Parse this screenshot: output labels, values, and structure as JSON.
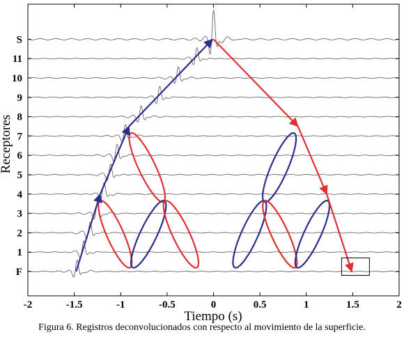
{
  "chart_data": {
    "type": "line",
    "xlabel": "Tiempo (s)",
    "ylabel": "Receptores",
    "xlim": [
      -2,
      2
    ],
    "xticks": [
      "-2",
      "-1.5",
      "-1",
      "-0.5",
      "0",
      "0.5",
      "1",
      "1.5",
      "2"
    ],
    "yticks": [
      "F",
      "1",
      "2",
      "3",
      "4",
      "5",
      "6",
      "7",
      "8",
      "9",
      "10",
      "11",
      "S"
    ],
    "grid": false,
    "trace_color": "#555555",
    "traces": [
      {
        "label": "F",
        "pulses": [
          {
            "t": -1.47,
            "a": 1
          }
        ]
      },
      {
        "label": "1",
        "pulses": [
          {
            "t": -1.4,
            "a": 1
          }
        ]
      },
      {
        "label": "2",
        "pulses": [
          {
            "t": -1.33,
            "a": 1
          }
        ]
      },
      {
        "label": "3",
        "pulses": [
          {
            "t": -1.25,
            "a": 1
          }
        ]
      },
      {
        "label": "4",
        "pulses": [
          {
            "t": -1.18,
            "a": 1
          }
        ]
      },
      {
        "label": "5",
        "pulses": [
          {
            "t": -1.11,
            "a": 1
          }
        ]
      },
      {
        "label": "6",
        "pulses": [
          {
            "t": -1.04,
            "a": 1
          }
        ]
      },
      {
        "label": "7",
        "pulses": [
          {
            "t": -0.95,
            "a": 1
          }
        ]
      },
      {
        "label": "8",
        "pulses": [
          {
            "t": -0.78,
            "a": 1
          }
        ]
      },
      {
        "label": "9",
        "pulses": [
          {
            "t": -0.58,
            "a": 1
          }
        ]
      },
      {
        "label": "10",
        "pulses": [
          {
            "t": -0.38,
            "a": 1
          }
        ]
      },
      {
        "label": "11",
        "pulses": [
          {
            "t": -0.18,
            "a": 1
          }
        ]
      },
      {
        "label": "S",
        "pulses": [
          {
            "t": 0.0,
            "a": 1.3
          }
        ]
      }
    ],
    "arrows": [
      {
        "color": "#2b2d8f",
        "points": [
          [
            -1.48,
            "F"
          ],
          [
            -1.22,
            "4"
          ]
        ]
      },
      {
        "color": "#2b2d8f",
        "points": [
          [
            -1.22,
            "4"
          ],
          [
            -0.91,
            "7.5"
          ]
        ]
      },
      {
        "color": "#2b2d8f",
        "points": [
          [
            -0.91,
            "7.5"
          ],
          [
            -0.01,
            "S"
          ]
        ]
      },
      {
        "color": "#e03030",
        "points": [
          [
            0.0,
            "S"
          ],
          [
            0.91,
            "7.5"
          ]
        ]
      },
      {
        "color": "#e03030",
        "points": [
          [
            0.91,
            "7.5"
          ],
          [
            1.22,
            "4"
          ]
        ]
      },
      {
        "color": "#e03030",
        "points": [
          [
            1.22,
            "4"
          ],
          [
            1.49,
            "F"
          ]
        ]
      }
    ],
    "ellipses": [
      {
        "color": "#e03030",
        "from": [
          -1.22,
          3.65
        ],
        "to": [
          -0.9,
          0.2
        ]
      },
      {
        "color": "#e03030",
        "from": [
          -0.89,
          7.15
        ],
        "to": [
          -0.54,
          3.6
        ]
      },
      {
        "color": "#2b2d8f",
        "from": [
          -0.53,
          3.65
        ],
        "to": [
          -0.87,
          0.2
        ]
      },
      {
        "color": "#e03030",
        "from": [
          -0.52,
          3.65
        ],
        "to": [
          -0.18,
          0.2
        ]
      },
      {
        "color": "#2b2d8f",
        "from": [
          0.87,
          7.15
        ],
        "to": [
          0.55,
          3.6
        ]
      },
      {
        "color": "#2b2d8f",
        "from": [
          0.55,
          3.65
        ],
        "to": [
          0.23,
          0.2
        ]
      },
      {
        "color": "#e03030",
        "from": [
          0.55,
          3.65
        ],
        "to": [
          0.88,
          0.2
        ]
      },
      {
        "color": "#2b2d8f",
        "from": [
          1.23,
          3.65
        ],
        "to": [
          0.9,
          0.2
        ]
      }
    ],
    "boxes": [
      {
        "color": "#000000",
        "x": [
          1.38,
          1.68
        ],
        "y": [
          -0.2,
          0.7
        ]
      }
    ]
  },
  "caption": "Figura 6. Registros deconvolucionados con respecto al movimiento de la superficie."
}
